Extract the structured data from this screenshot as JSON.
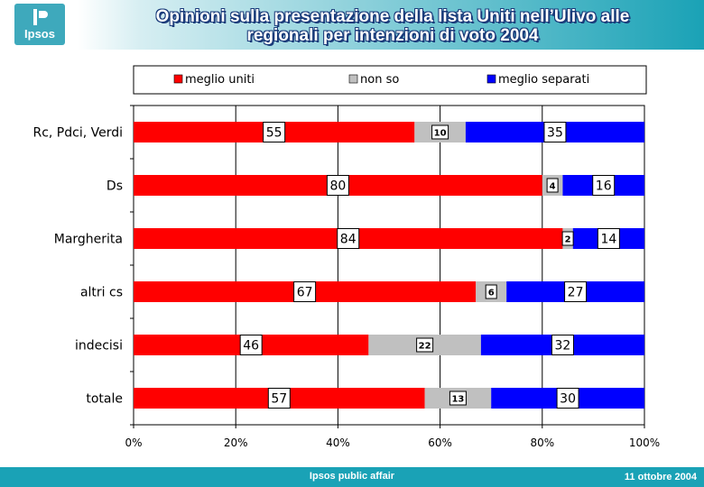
{
  "header": {
    "logo_text": "Ipsos",
    "title_line1": "Opinioni sulla presentazione della lista Uniti nell’Ulivo alle",
    "title_line2": "regionali per intenzioni di voto 2004"
  },
  "footer": {
    "center_text": "Ipsos public affair",
    "date": "11 ottobre 2004"
  },
  "colors": {
    "meglio_uniti": "#ff0000",
    "non_so": "#c0c0c0",
    "meglio_separati": "#0000ff",
    "header_teal": "#1aa2b6",
    "title_shadow": "#1a3b7a"
  },
  "chart_data": {
    "type": "bar",
    "orientation": "horizontal",
    "stacked": true,
    "percent_stacked": true,
    "categories": [
      "Rc, Pdci, Verdi",
      "Ds",
      "Margherita",
      "altri cs",
      "indecisi",
      "totale"
    ],
    "series": [
      {
        "name": "meglio uniti",
        "values": [
          55,
          80,
          84,
          67,
          46,
          57
        ]
      },
      {
        "name": "non so",
        "values": [
          10,
          4,
          2,
          6,
          22,
          13
        ]
      },
      {
        "name": "meglio separati",
        "values": [
          35,
          16,
          14,
          27,
          32,
          30
        ]
      }
    ],
    "xlim": [
      0,
      100
    ],
    "x_ticks": [
      "0%",
      "20%",
      "40%",
      "60%",
      "80%",
      "100%"
    ],
    "grid": true,
    "legend_position": "top"
  }
}
